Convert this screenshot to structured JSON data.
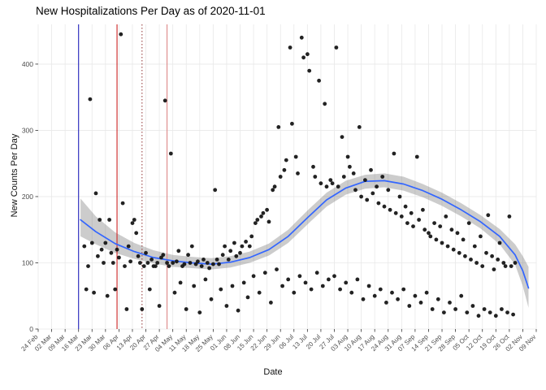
{
  "chart_data": {
    "type": "scatter",
    "title": "New Hospitalizations Per Day as of 2020-11-01",
    "xlabel": "Date",
    "ylabel": "New Counts Per Day",
    "ylim": [
      0,
      460
    ],
    "y_ticks": [
      0,
      100,
      200,
      300,
      400
    ],
    "grid": true,
    "legend": false,
    "x_tick_interval_days": 7,
    "x_range_days": [
      0,
      259
    ],
    "x_tick_labels": [
      "24 Feb",
      "02 Mar",
      "09 Mar",
      "16 Mar",
      "23 Mar",
      "30 Mar",
      "06 Apr",
      "13 Apr",
      "20 Apr",
      "27 Apr",
      "04 May",
      "11 May",
      "18 May",
      "25 May",
      "01 Jun",
      "08 Jun",
      "15 Jun",
      "22 Jun",
      "29 Jun",
      "06 Jul",
      "13 Jul",
      "20 Jul",
      "27 Jul",
      "03 Aug",
      "10 Aug",
      "17 Aug",
      "24 Aug",
      "31 Aug",
      "07 Sep",
      "14 Sep",
      "21 Sep",
      "28 Sep",
      "05 Oct",
      "12 Oct",
      "19 Oct",
      "26 Oct",
      "02 Nov",
      "09 Nov"
    ],
    "point_color": "#161616",
    "smooth_color": "#3366FF",
    "band_color": "rgba(110,110,110,0.35)",
    "grid_color": "#e8e8e8",
    "tick_text_color": "#4d4d4d",
    "points": [
      [
        24,
        125
      ],
      [
        25,
        60
      ],
      [
        26,
        95
      ],
      [
        27,
        347
      ],
      [
        28,
        130
      ],
      [
        29,
        55
      ],
      [
        30,
        205
      ],
      [
        31,
        110
      ],
      [
        32,
        165
      ],
      [
        33,
        120
      ],
      [
        34,
        100
      ],
      [
        35,
        130
      ],
      [
        36,
        50
      ],
      [
        37,
        165
      ],
      [
        38,
        115
      ],
      [
        39,
        100
      ],
      [
        40,
        60
      ],
      [
        41,
        120
      ],
      [
        42,
        108
      ],
      [
        43,
        445
      ],
      [
        44,
        190
      ],
      [
        45,
        95
      ],
      [
        46,
        30
      ],
      [
        47,
        125
      ],
      [
        48,
        102
      ],
      [
        49,
        160
      ],
      [
        50,
        165
      ],
      [
        51,
        145
      ],
      [
        52,
        110
      ],
      [
        53,
        100
      ],
      [
        54,
        30
      ],
      [
        55,
        95
      ],
      [
        56,
        115
      ],
      [
        57,
        100
      ],
      [
        58,
        60
      ],
      [
        59,
        105
      ],
      [
        60,
        95
      ],
      [
        61,
        95
      ],
      [
        62,
        100
      ],
      [
        63,
        35
      ],
      [
        64,
        108
      ],
      [
        65,
        112
      ],
      [
        66,
        345
      ],
      [
        67,
        100
      ],
      [
        68,
        95
      ],
      [
        69,
        265
      ],
      [
        70,
        100
      ],
      [
        71,
        55
      ],
      [
        72,
        102
      ],
      [
        73,
        118
      ],
      [
        74,
        70
      ],
      [
        75,
        95
      ],
      [
        76,
        98
      ],
      [
        77,
        30
      ],
      [
        78,
        112
      ],
      [
        79,
        100
      ],
      [
        80,
        125
      ],
      [
        81,
        65
      ],
      [
        82,
        98
      ],
      [
        83,
        102
      ],
      [
        84,
        25
      ],
      [
        85,
        95
      ],
      [
        86,
        105
      ],
      [
        87,
        75
      ],
      [
        88,
        100
      ],
      [
        89,
        92
      ],
      [
        90,
        45
      ],
      [
        91,
        98
      ],
      [
        92,
        210
      ],
      [
        93,
        105
      ],
      [
        94,
        98
      ],
      [
        95,
        60
      ],
      [
        96,
        112
      ],
      [
        97,
        125
      ],
      [
        98,
        35
      ],
      [
        99,
        105
      ],
      [
        100,
        118
      ],
      [
        101,
        65
      ],
      [
        102,
        130
      ],
      [
        103,
        110
      ],
      [
        104,
        28
      ],
      [
        105,
        115
      ],
      [
        106,
        125
      ],
      [
        107,
        70
      ],
      [
        108,
        132
      ],
      [
        109,
        48
      ],
      [
        110,
        125
      ],
      [
        111,
        140
      ],
      [
        112,
        80
      ],
      [
        113,
        160
      ],
      [
        114,
        165
      ],
      [
        115,
        55
      ],
      [
        116,
        170
      ],
      [
        117,
        175
      ],
      [
        118,
        85
      ],
      [
        119,
        180
      ],
      [
        120,
        162
      ],
      [
        121,
        40
      ],
      [
        122,
        210
      ],
      [
        123,
        215
      ],
      [
        124,
        90
      ],
      [
        125,
        305
      ],
      [
        126,
        230
      ],
      [
        127,
        65
      ],
      [
        128,
        240
      ],
      [
        129,
        255
      ],
      [
        130,
        75
      ],
      [
        131,
        425
      ],
      [
        132,
        310
      ],
      [
        133,
        55
      ],
      [
        134,
        260
      ],
      [
        135,
        235
      ],
      [
        136,
        80
      ],
      [
        137,
        440
      ],
      [
        138,
        410
      ],
      [
        139,
        70
      ],
      [
        140,
        415
      ],
      [
        141,
        390
      ],
      [
        142,
        60
      ],
      [
        143,
        245
      ],
      [
        144,
        230
      ],
      [
        145,
        85
      ],
      [
        146,
        375
      ],
      [
        147,
        220
      ],
      [
        148,
        65
      ],
      [
        149,
        340
      ],
      [
        150,
        215
      ],
      [
        151,
        75
      ],
      [
        152,
        225
      ],
      [
        153,
        220
      ],
      [
        154,
        80
      ],
      [
        155,
        425
      ],
      [
        156,
        215
      ],
      [
        157,
        60
      ],
      [
        158,
        290
      ],
      [
        159,
        230
      ],
      [
        160,
        70
      ],
      [
        161,
        260
      ],
      [
        162,
        245
      ],
      [
        163,
        55
      ],
      [
        164,
        235
      ],
      [
        165,
        210
      ],
      [
        166,
        75
      ],
      [
        167,
        305
      ],
      [
        168,
        200
      ],
      [
        169,
        45
      ],
      [
        170,
        225
      ],
      [
        171,
        195
      ],
      [
        172,
        65
      ],
      [
        173,
        240
      ],
      [
        174,
        205
      ],
      [
        175,
        50
      ],
      [
        176,
        215
      ],
      [
        177,
        190
      ],
      [
        178,
        60
      ],
      [
        179,
        230
      ],
      [
        180,
        185
      ],
      [
        181,
        40
      ],
      [
        182,
        210
      ],
      [
        183,
        180
      ],
      [
        184,
        55
      ],
      [
        185,
        265
      ],
      [
        186,
        175
      ],
      [
        187,
        45
      ],
      [
        188,
        200
      ],
      [
        189,
        170
      ],
      [
        190,
        60
      ],
      [
        191,
        185
      ],
      [
        192,
        160
      ],
      [
        193,
        35
      ],
      [
        194,
        175
      ],
      [
        195,
        155
      ],
      [
        196,
        50
      ],
      [
        197,
        260
      ],
      [
        198,
        165
      ],
      [
        199,
        40
      ],
      [
        200,
        180
      ],
      [
        201,
        150
      ],
      [
        202,
        55
      ],
      [
        203,
        145
      ],
      [
        204,
        140
      ],
      [
        205,
        30
      ],
      [
        206,
        160
      ],
      [
        207,
        135
      ],
      [
        208,
        45
      ],
      [
        209,
        155
      ],
      [
        210,
        130
      ],
      [
        211,
        25
      ],
      [
        212,
        170
      ],
      [
        213,
        125
      ],
      [
        214,
        40
      ],
      [
        215,
        150
      ],
      [
        216,
        120
      ],
      [
        217,
        30
      ],
      [
        218,
        145
      ],
      [
        219,
        115
      ],
      [
        220,
        50
      ],
      [
        221,
        135
      ],
      [
        222,
        110
      ],
      [
        223,
        25
      ],
      [
        224,
        160
      ],
      [
        225,
        105
      ],
      [
        226,
        35
      ],
      [
        227,
        125
      ],
      [
        228,
        100
      ],
      [
        229,
        20
      ],
      [
        230,
        140
      ],
      [
        231,
        95
      ],
      [
        232,
        30
      ],
      [
        233,
        115
      ],
      [
        234,
        172
      ],
      [
        235,
        25
      ],
      [
        236,
        110
      ],
      [
        237,
        90
      ],
      [
        238,
        20
      ],
      [
        239,
        105
      ],
      [
        240,
        130
      ],
      [
        241,
        30
      ],
      [
        242,
        100
      ],
      [
        243,
        95
      ],
      [
        244,
        25
      ],
      [
        245,
        170
      ],
      [
        246,
        95
      ],
      [
        247,
        22
      ],
      [
        248,
        100
      ]
    ],
    "smooth_line": [
      [
        22,
        165
      ],
      [
        30,
        147
      ],
      [
        40,
        129
      ],
      [
        50,
        117
      ],
      [
        60,
        108
      ],
      [
        70,
        103
      ],
      [
        80,
        100
      ],
      [
        90,
        98
      ],
      [
        100,
        101
      ],
      [
        110,
        108
      ],
      [
        120,
        120
      ],
      [
        130,
        140
      ],
      [
        140,
        168
      ],
      [
        150,
        195
      ],
      [
        160,
        213
      ],
      [
        170,
        223
      ],
      [
        180,
        224
      ],
      [
        190,
        219
      ],
      [
        200,
        209
      ],
      [
        210,
        196
      ],
      [
        220,
        180
      ],
      [
        230,
        162
      ],
      [
        240,
        140
      ],
      [
        248,
        112
      ],
      [
        252,
        88
      ],
      [
        255,
        62
      ]
    ],
    "confidence_band": [
      [
        22,
        140,
        197
      ],
      [
        30,
        128,
        170
      ],
      [
        40,
        115,
        146
      ],
      [
        50,
        106,
        130
      ],
      [
        60,
        99,
        119
      ],
      [
        70,
        94,
        112
      ],
      [
        80,
        92,
        109
      ],
      [
        90,
        90,
        107
      ],
      [
        100,
        93,
        110
      ],
      [
        110,
        100,
        117
      ],
      [
        120,
        111,
        129
      ],
      [
        130,
        130,
        150
      ],
      [
        140,
        158,
        179
      ],
      [
        150,
        185,
        206
      ],
      [
        160,
        203,
        224
      ],
      [
        170,
        212,
        233
      ],
      [
        180,
        214,
        235
      ],
      [
        190,
        209,
        230
      ],
      [
        200,
        199,
        219
      ],
      [
        210,
        186,
        206
      ],
      [
        220,
        170,
        190
      ],
      [
        230,
        152,
        172
      ],
      [
        240,
        128,
        151
      ],
      [
        248,
        97,
        128
      ],
      [
        252,
        65,
        110
      ],
      [
        255,
        32,
        94
      ]
    ],
    "vlines": [
      {
        "day": 21,
        "color": "#2222bb",
        "style": "solid",
        "name": "blue-reference-line"
      },
      {
        "day": 41,
        "color": "#cc2222",
        "style": "solid",
        "name": "red-reference-line"
      },
      {
        "day": 54,
        "color": "#994444",
        "style": "dotted",
        "name": "dotted-red-reference-line"
      },
      {
        "day": 67,
        "color": "#dd8888",
        "style": "solid",
        "name": "salmon-reference-line"
      }
    ]
  }
}
